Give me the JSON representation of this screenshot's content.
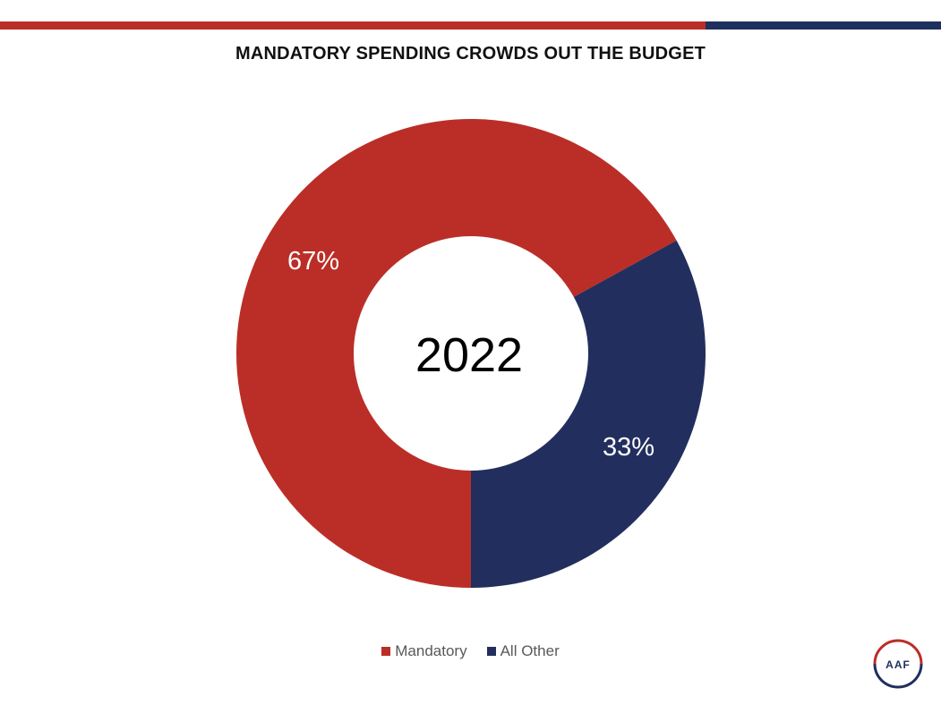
{
  "colors": {
    "mandatory": "#bb2e27",
    "all_other": "#222f5e",
    "top_bar_red": "#bb2e27",
    "top_bar_navy": "#1f2f5e"
  },
  "chart_data": {
    "type": "pie",
    "title": "MANDATORY SPENDING CROWDS OUT THE BUDGET",
    "center_label": "2022",
    "categories": [
      "Mandatory",
      "All Other"
    ],
    "values": [
      67,
      33
    ],
    "data_labels": [
      "67%",
      "33%"
    ],
    "colors": [
      "#bb2e27",
      "#222f5e"
    ],
    "legend_position": "bottom"
  },
  "logo": {
    "text": "AAF"
  }
}
